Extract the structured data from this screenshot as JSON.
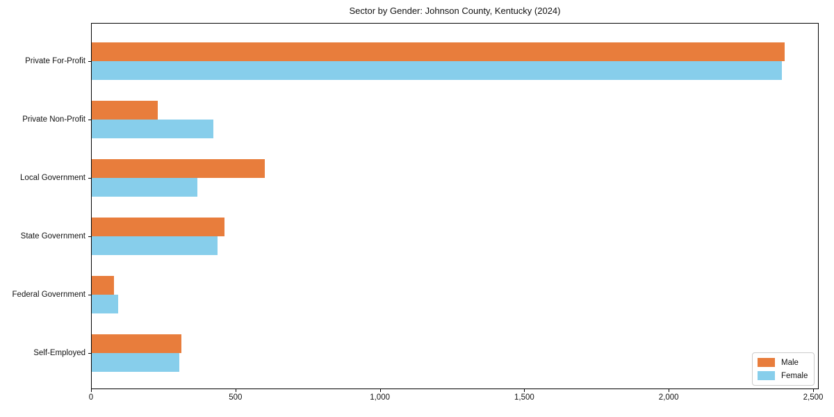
{
  "chart_data": {
    "type": "bar",
    "orientation": "horizontal",
    "title": "Sector by Gender: Johnson County, Kentucky (2024)",
    "categories": [
      "Private For-Profit",
      "Private Non-Profit",
      "Local Government",
      "State Government",
      "Federal Government",
      "Self-Employed"
    ],
    "series": [
      {
        "name": "Male",
        "color": "#E87D3C",
        "values": [
          2400,
          228,
          600,
          459,
          78,
          310
        ]
      },
      {
        "name": "Female",
        "color": "#87CEEB",
        "values": [
          2390,
          422,
          365,
          436,
          92,
          302
        ]
      }
    ],
    "xlabel": "",
    "ylabel": "",
    "xlim": [
      0,
      2500
    ],
    "xticks": [
      0,
      500,
      1000,
      1500,
      2000,
      2500
    ],
    "xtick_labels": [
      "0",
      "500",
      "1,000",
      "1,500",
      "2,000",
      "2,500"
    ],
    "grid": false,
    "legend": {
      "position": "lower right",
      "entries": [
        "Male",
        "Female"
      ]
    }
  }
}
